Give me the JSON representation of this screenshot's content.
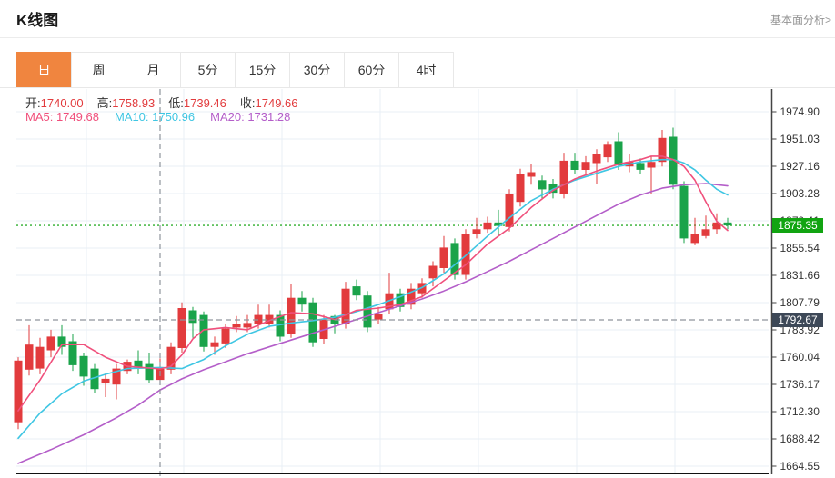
{
  "header": {
    "title": "K线图",
    "link_label": "基本面分析>"
  },
  "tabs": {
    "items": [
      {
        "label": "日",
        "active": true
      },
      {
        "label": "周",
        "active": false
      },
      {
        "label": "月",
        "active": false
      },
      {
        "label": "5分",
        "active": false
      },
      {
        "label": "15分",
        "active": false
      },
      {
        "label": "30分",
        "active": false
      },
      {
        "label": "60分",
        "active": false
      },
      {
        "label": "4时",
        "active": false
      }
    ]
  },
  "quote_bar": {
    "ohlc": [
      {
        "label": "开:",
        "value": "1740.00"
      },
      {
        "label": "高:",
        "value": "1758.93"
      },
      {
        "label": "低:",
        "value": "1739.46"
      },
      {
        "label": "收:",
        "value": "1749.66"
      }
    ],
    "ma": [
      {
        "label": "MA5:",
        "value": "1749.68",
        "color": "#f0507c"
      },
      {
        "label": "MA10:",
        "value": "1750.96",
        "color": "#3fc6e3"
      },
      {
        "label": "MA20:",
        "value": "1731.28",
        "color": "#b45ec9"
      }
    ]
  },
  "badges": {
    "current_price": "1875.35",
    "crosshair_price": "1792.67"
  },
  "colors": {
    "up": "#e23b3d",
    "down": "#1aa34a",
    "ma5": "#f0507c",
    "ma10": "#3fc6e3",
    "ma20": "#b45ec9",
    "tab_active_bg": "#f0853f",
    "current_badge_bg": "#11a411",
    "crosshair_badge_bg": "#3d4857",
    "grid": "#e9eff5",
    "axis": "#444444",
    "x_axis": "#111111",
    "value_red": "#e23b3d",
    "tick_text": "#333333",
    "current_price_line": "#2fae2f",
    "crosshair": "#8f959c"
  },
  "chart_data": {
    "type": "candlestick",
    "title": "K线图",
    "y_ticks": [
      1974.9,
      1951.03,
      1927.16,
      1903.28,
      1879.41,
      1855.54,
      1831.66,
      1807.79,
      1783.92,
      1760.04,
      1736.17,
      1712.3,
      1688.42,
      1664.55
    ],
    "ylim": [
      1664.55,
      1974.9
    ],
    "grid": true,
    "current_price": 1875.35,
    "crosshair": {
      "index": 13,
      "price": 1792.67
    },
    "hovered_candle": {
      "open": 1740.0,
      "high": 1758.93,
      "low": 1739.46,
      "close": 1749.66
    },
    "ma_values_at_crosshair": {
      "ma5": 1749.68,
      "ma10": 1750.96,
      "ma20": 1731.28
    },
    "candles": [
      [
        1703,
        1760,
        1697,
        1757
      ],
      [
        1749,
        1788,
        1744,
        1771
      ],
      [
        1750,
        1777,
        1745,
        1769
      ],
      [
        1766,
        1784,
        1760,
        1778
      ],
      [
        1778,
        1788,
        1762,
        1769
      ],
      [
        1774,
        1780,
        1748,
        1753
      ],
      [
        1761,
        1764,
        1735,
        1743
      ],
      [
        1750,
        1754,
        1729,
        1732
      ],
      [
        1737,
        1746,
        1725,
        1741
      ],
      [
        1736,
        1754,
        1723,
        1750
      ],
      [
        1748,
        1758,
        1745,
        1756
      ],
      [
        1757,
        1766,
        1745,
        1750
      ],
      [
        1754,
        1764,
        1737,
        1740
      ],
      [
        1740,
        1758.93,
        1739.46,
        1749.66
      ],
      [
        1749,
        1773,
        1745,
        1769
      ],
      [
        1768,
        1808,
        1764,
        1803
      ],
      [
        1801,
        1804,
        1777,
        1790
      ],
      [
        1797,
        1800,
        1765,
        1769
      ],
      [
        1769,
        1778,
        1762,
        1773
      ],
      [
        1772,
        1789,
        1768,
        1785
      ],
      [
        1786,
        1796,
        1782,
        1789
      ],
      [
        1786,
        1797,
        1782,
        1790
      ],
      [
        1789,
        1806,
        1785,
        1797
      ],
      [
        1789,
        1806,
        1786,
        1797
      ],
      [
        1797,
        1801,
        1774,
        1778
      ],
      [
        1780,
        1824,
        1777,
        1812
      ],
      [
        1812,
        1818,
        1800,
        1806
      ],
      [
        1808,
        1812,
        1769,
        1773
      ],
      [
        1776,
        1797,
        1772,
        1793
      ],
      [
        1796,
        1797,
        1781,
        1789
      ],
      [
        1789,
        1826,
        1785,
        1820
      ],
      [
        1822,
        1828,
        1810,
        1814
      ],
      [
        1814,
        1818,
        1782,
        1786
      ],
      [
        1793,
        1804,
        1789,
        1798
      ],
      [
        1802,
        1834,
        1798,
        1816
      ],
      [
        1816,
        1820,
        1800,
        1804
      ],
      [
        1806,
        1825,
        1802,
        1820
      ],
      [
        1816,
        1829,
        1812,
        1825
      ],
      [
        1829,
        1844,
        1822,
        1840
      ],
      [
        1838,
        1866,
        1834,
        1856
      ],
      [
        1860,
        1864,
        1828,
        1832
      ],
      [
        1832,
        1872,
        1828,
        1868
      ],
      [
        1868,
        1882,
        1864,
        1872
      ],
      [
        1872,
        1883,
        1869,
        1878
      ],
      [
        1878,
        1889,
        1866,
        1875
      ],
      [
        1874,
        1907,
        1870,
        1903
      ],
      [
        1896,
        1925,
        1892,
        1920
      ],
      [
        1918,
        1929,
        1911,
        1922
      ],
      [
        1915,
        1919,
        1899,
        1907
      ],
      [
        1912,
        1916,
        1899,
        1904
      ],
      [
        1903,
        1939,
        1899,
        1932
      ],
      [
        1932,
        1939,
        1920,
        1924
      ],
      [
        1924,
        1936,
        1920,
        1931
      ],
      [
        1930,
        1942,
        1912,
        1938
      ],
      [
        1935,
        1949,
        1931,
        1946
      ],
      [
        1949,
        1957,
        1924,
        1928
      ],
      [
        1927,
        1938,
        1922,
        1931
      ],
      [
        1930,
        1934,
        1920,
        1924
      ],
      [
        1926,
        1936,
        1903,
        1931
      ],
      [
        1931,
        1959,
        1927,
        1952
      ],
      [
        1953,
        1961,
        1907,
        1911
      ],
      [
        1910,
        1914,
        1860,
        1864
      ],
      [
        1860,
        1882,
        1858,
        1868
      ],
      [
        1866,
        1884,
        1864,
        1872
      ],
      [
        1872,
        1886,
        1868,
        1878
      ],
      [
        1878,
        1882,
        1872,
        1875.35
      ]
    ],
    "ma5": [
      [
        0,
        1713
      ],
      [
        2,
        1740
      ],
      [
        4,
        1771
      ],
      [
        6,
        1771
      ],
      [
        8,
        1760
      ],
      [
        10,
        1752
      ],
      [
        13,
        1749.68
      ],
      [
        14,
        1752
      ],
      [
        15,
        1762
      ],
      [
        16,
        1776
      ],
      [
        17,
        1784
      ],
      [
        19,
        1786
      ],
      [
        21,
        1784
      ],
      [
        23,
        1792
      ],
      [
        25,
        1799
      ],
      [
        27,
        1798
      ],
      [
        29,
        1793
      ],
      [
        31,
        1801
      ],
      [
        33,
        1803
      ],
      [
        35,
        1806
      ],
      [
        37,
        1813
      ],
      [
        39,
        1827
      ],
      [
        41,
        1841
      ],
      [
        43,
        1859
      ],
      [
        45,
        1873
      ],
      [
        47,
        1891
      ],
      [
        49,
        1906
      ],
      [
        51,
        1916
      ],
      [
        53,
        1923
      ],
      [
        55,
        1929
      ],
      [
        57,
        1933
      ],
      [
        58,
        1936
      ],
      [
        59,
        1936
      ],
      [
        60,
        1933
      ],
      [
        61,
        1927
      ],
      [
        62,
        1915
      ],
      [
        63,
        1896
      ],
      [
        64,
        1879
      ],
      [
        65,
        1871
      ]
    ],
    "ma10": [
      [
        0,
        1689
      ],
      [
        2,
        1711
      ],
      [
        4,
        1728
      ],
      [
        6,
        1739
      ],
      [
        8,
        1745
      ],
      [
        10,
        1750
      ],
      [
        13,
        1750.96
      ],
      [
        15,
        1750
      ],
      [
        17,
        1758
      ],
      [
        19,
        1770
      ],
      [
        21,
        1780
      ],
      [
        23,
        1787
      ],
      [
        25,
        1790
      ],
      [
        27,
        1792
      ],
      [
        29,
        1795
      ],
      [
        31,
        1800
      ],
      [
        33,
        1806
      ],
      [
        35,
        1813
      ],
      [
        37,
        1821
      ],
      [
        39,
        1833
      ],
      [
        41,
        1849
      ],
      [
        43,
        1866
      ],
      [
        45,
        1882
      ],
      [
        47,
        1897
      ],
      [
        49,
        1907
      ],
      [
        51,
        1915
      ],
      [
        53,
        1921
      ],
      [
        55,
        1927
      ],
      [
        57,
        1931
      ],
      [
        59,
        1933
      ],
      [
        60,
        1933
      ],
      [
        61,
        1930
      ],
      [
        62,
        1924
      ],
      [
        63,
        1915
      ],
      [
        64,
        1907
      ],
      [
        65,
        1902
      ]
    ],
    "ma20": [
      [
        0,
        1667
      ],
      [
        3,
        1679
      ],
      [
        6,
        1692
      ],
      [
        9,
        1707
      ],
      [
        11,
        1718
      ],
      [
        13,
        1731.28
      ],
      [
        15,
        1741
      ],
      [
        17,
        1749
      ],
      [
        19,
        1756
      ],
      [
        21,
        1763
      ],
      [
        23,
        1769
      ],
      [
        25,
        1775
      ],
      [
        27,
        1781
      ],
      [
        29,
        1787
      ],
      [
        31,
        1793
      ],
      [
        33,
        1799
      ],
      [
        35,
        1805
      ],
      [
        37,
        1811
      ],
      [
        39,
        1818
      ],
      [
        41,
        1826
      ],
      [
        43,
        1835
      ],
      [
        45,
        1844
      ],
      [
        47,
        1854
      ],
      [
        49,
        1864
      ],
      [
        51,
        1874
      ],
      [
        53,
        1884
      ],
      [
        55,
        1894
      ],
      [
        57,
        1902
      ],
      [
        59,
        1908
      ],
      [
        61,
        1911
      ],
      [
        63,
        1912
      ],
      [
        65,
        1910
      ]
    ],
    "layout": {
      "plot_left": 18,
      "plot_right": 845,
      "axis_x": 848.5,
      "plot_bottom": 423,
      "price_top": 1974.9,
      "price_top_y": 25,
      "price_bottom": 1664.55,
      "price_bottom_y": 415,
      "candle_x0": 20,
      "candle_dx": 12,
      "candle_width": 9,
      "v_grid_x": [
        95,
        202,
        310,
        418,
        526,
        634,
        742
      ],
      "legend_position": "none"
    }
  }
}
